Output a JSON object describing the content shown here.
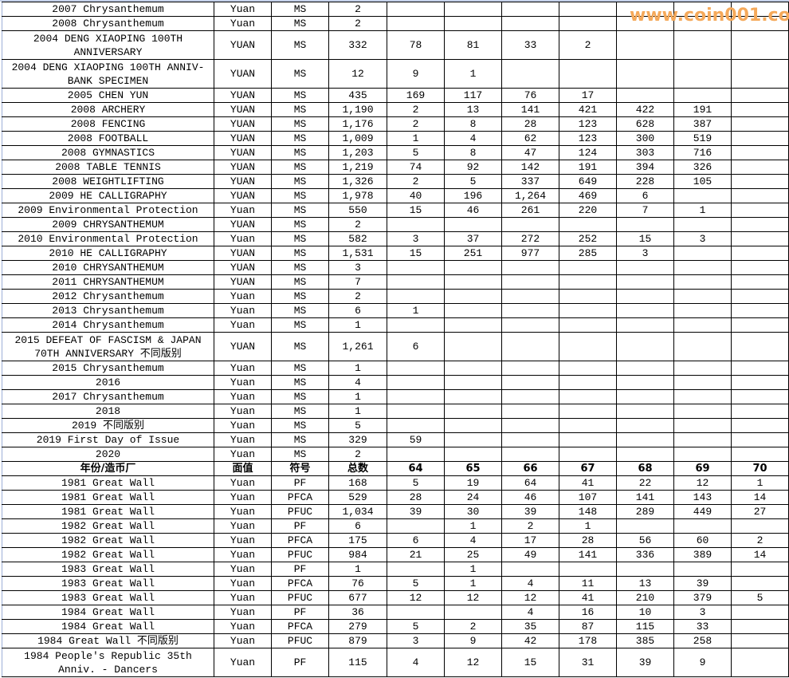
{
  "columns_header": [
    "年份/造币厂",
    "面值",
    "符号",
    "总数",
    "64",
    "65",
    "66",
    "67",
    "68",
    "69",
    "70"
  ],
  "rows": [
    [
      "2007 Chrysanthemum",
      "Yuan",
      "MS",
      "2",
      "",
      "",
      "",
      "",
      "",
      "",
      ""
    ],
    [
      "2008 Chrysanthemum",
      "Yuan",
      "MS",
      "2",
      "",
      "",
      "",
      "",
      "",
      "",
      ""
    ],
    [
      "2004 DENG XIAOPING 100TH ANNIVERSARY",
      "YUAN",
      "MS",
      "332",
      "78",
      "81",
      "33",
      "2",
      "",
      "",
      ""
    ],
    [
      "2004 DENG XIAOPING 100TH ANNIV-BANK SPECIMEN",
      "YUAN",
      "MS",
      "12",
      "9",
      "1",
      "",
      "",
      "",
      "",
      ""
    ],
    [
      "2005 CHEN YUN",
      "YUAN",
      "MS",
      "435",
      "169",
      "117",
      "76",
      "17",
      "",
      "",
      ""
    ],
    [
      "2008 ARCHERY",
      "YUAN",
      "MS",
      "1,190",
      "2",
      "13",
      "141",
      "421",
      "422",
      "191",
      ""
    ],
    [
      "2008 FENCING",
      "YUAN",
      "MS",
      "1,176",
      "2",
      "8",
      "28",
      "123",
      "628",
      "387",
      ""
    ],
    [
      "2008 FOOTBALL",
      "YUAN",
      "MS",
      "1,009",
      "1",
      "4",
      "62",
      "123",
      "300",
      "519",
      ""
    ],
    [
      "2008 GYMNASTICS",
      "YUAN",
      "MS",
      "1,203",
      "5",
      "8",
      "47",
      "124",
      "303",
      "716",
      ""
    ],
    [
      "2008 TABLE TENNIS",
      "YUAN",
      "MS",
      "1,219",
      "74",
      "92",
      "142",
      "191",
      "394",
      "326",
      ""
    ],
    [
      "2008 WEIGHTLIFTING",
      "YUAN",
      "MS",
      "1,326",
      "2",
      "5",
      "337",
      "649",
      "228",
      "105",
      ""
    ],
    [
      "2009 HE CALLIGRAPHY",
      "YUAN",
      "MS",
      "1,978",
      "40",
      "196",
      "1,264",
      "469",
      "6",
      "",
      ""
    ],
    [
      "2009 Environmental Protection",
      "Yuan",
      "MS",
      "550",
      "15",
      "46",
      "261",
      "220",
      "7",
      "1",
      ""
    ],
    [
      "2009 CHRYSANTHEMUM",
      "YUAN",
      "MS",
      "2",
      "",
      "",
      "",
      "",
      "",
      "",
      ""
    ],
    [
      "2010 Environmental Protection",
      "Yuan",
      "MS",
      "582",
      "3",
      "37",
      "272",
      "252",
      "15",
      "3",
      ""
    ],
    [
      "2010 HE CALLIGRAPHY",
      "YUAN",
      "MS",
      "1,531",
      "15",
      "251",
      "977",
      "285",
      "3",
      "",
      ""
    ],
    [
      "2010 CHRYSANTHEMUM",
      "YUAN",
      "MS",
      "3",
      "",
      "",
      "",
      "",
      "",
      "",
      ""
    ],
    [
      "2011 CHRYSANTHEMUM",
      "YUAN",
      "MS",
      "7",
      "",
      "",
      "",
      "",
      "",
      "",
      ""
    ],
    [
      "2012 Chrysanthemum",
      "Yuan",
      "MS",
      "2",
      "",
      "",
      "",
      "",
      "",
      "",
      ""
    ],
    [
      "2013 Chrysanthemum",
      "Yuan",
      "MS",
      "6",
      "1",
      "",
      "",
      "",
      "",
      "",
      ""
    ],
    [
      "2014 Chrysanthemum",
      "Yuan",
      "MS",
      "1",
      "",
      "",
      "",
      "",
      "",
      "",
      ""
    ],
    [
      "2015 DEFEAT OF FASCISM & JAPAN 70TH ANNIVERSARY 不同版别",
      "YUAN",
      "MS",
      "1,261",
      "6",
      "",
      "",
      "",
      "",
      "",
      ""
    ],
    [
      "2015 Chrysanthemum",
      "Yuan",
      "MS",
      "1",
      "",
      "",
      "",
      "",
      "",
      "",
      ""
    ],
    [
      "2016",
      "Yuan",
      "MS",
      "4",
      "",
      "",
      "",
      "",
      "",
      "",
      ""
    ],
    [
      "2017 Chrysanthemum",
      "Yuan",
      "MS",
      "1",
      "",
      "",
      "",
      "",
      "",
      "",
      ""
    ],
    [
      "2018",
      "Yuan",
      "MS",
      "1",
      "",
      "",
      "",
      "",
      "",
      "",
      ""
    ],
    [
      "2019 不同版别",
      "Yuan",
      "MS",
      "5",
      "",
      "",
      "",
      "",
      "",
      "",
      ""
    ],
    [
      "2019 First Day of Issue",
      "Yuan",
      "MS",
      "329",
      "59",
      "",
      "",
      "",
      "",
      "",
      ""
    ],
    [
      "2020",
      "Yuan",
      "MS",
      "2",
      "",
      "",
      "",
      "",
      "",
      "",
      ""
    ]
  ],
  "rows2": [
    [
      "1981 Great Wall",
      "Yuan",
      "PF",
      "168",
      "5",
      "19",
      "64",
      "41",
      "22",
      "12",
      "1"
    ],
    [
      "1981 Great Wall",
      "Yuan",
      "PFCA",
      "529",
      "28",
      "24",
      "46",
      "107",
      "141",
      "143",
      "14"
    ],
    [
      "1981 Great Wall",
      "Yuan",
      "PFUC",
      "1,034",
      "39",
      "30",
      "39",
      "148",
      "289",
      "449",
      "27"
    ],
    [
      "1982 Great Wall",
      "Yuan",
      "PF",
      "6",
      "",
      "1",
      "2",
      "1",
      "",
      "",
      ""
    ],
    [
      "1982 Great Wall",
      "Yuan",
      "PFCA",
      "175",
      "6",
      "4",
      "17",
      "28",
      "56",
      "60",
      "2"
    ],
    [
      "1982 Great Wall",
      "Yuan",
      "PFUC",
      "984",
      "21",
      "25",
      "49",
      "141",
      "336",
      "389",
      "14"
    ],
    [
      "1983 Great Wall",
      "Yuan",
      "PF",
      "1",
      "",
      "1",
      "",
      "",
      "",
      "",
      ""
    ],
    [
      "1983 Great Wall",
      "Yuan",
      "PFCA",
      "76",
      "5",
      "1",
      "4",
      "11",
      "13",
      "39",
      ""
    ],
    [
      "1983 Great Wall",
      "Yuan",
      "PFUC",
      "677",
      "12",
      "12",
      "12",
      "41",
      "210",
      "379",
      "5"
    ],
    [
      "1984 Great Wall",
      "Yuan",
      "PF",
      "36",
      "",
      "",
      "4",
      "16",
      "10",
      "3",
      ""
    ],
    [
      "1984 Great Wall",
      "Yuan",
      "PFCA",
      "279",
      "5",
      "2",
      "35",
      "87",
      "115",
      "33",
      ""
    ],
    [
      "1984 Great Wall 不同版别",
      "Yuan",
      "PFUC",
      "879",
      "3",
      "9",
      "42",
      "178",
      "385",
      "258",
      ""
    ],
    [
      "1984 People's Republic 35th Anniv. - Dancers",
      "Yuan",
      "PF",
      "115",
      "4",
      "12",
      "15",
      "31",
      "39",
      "9",
      ""
    ]
  ],
  "double_rows": [
    "2004 DENG XIAOPING 100TH ANNIVERSARY",
    "2004 DENG XIAOPING 100TH ANNIV-BANK SPECIMEN",
    "2015 DEFEAT OF FASCISM & JAPAN 70TH ANNIVERSARY 不同版别",
    "1984 People's Republic 35th Anniv. - Dancers"
  ],
  "watermark": "www.coin001.com"
}
